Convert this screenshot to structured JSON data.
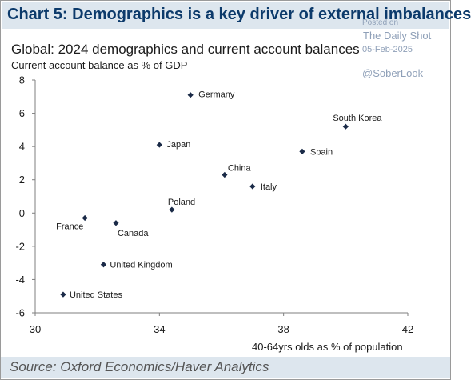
{
  "chart_data": {
    "type": "scatter",
    "title": "Chart 5: Demographics is a key driver of external imbalances",
    "subtitle": "Global: 2024 demographics and current account balances",
    "ylabel": "Current account balance as % of GDP",
    "xlabel": "40-64yrs olds as % of population",
    "source": "Source: Oxford Economics/Haver Analytics",
    "xlim": [
      30,
      42
    ],
    "ylim": [
      -6,
      8
    ],
    "xticks": [
      30,
      34,
      38,
      42
    ],
    "yticks": [
      8,
      6,
      4,
      2,
      0,
      -2,
      -4,
      -6
    ],
    "grid": false,
    "marker_color": "#1a2a47",
    "points": [
      {
        "label": "Germany",
        "x": 35.0,
        "y": 7.1
      },
      {
        "label": "South Korea",
        "x": 40.0,
        "y": 5.2
      },
      {
        "label": "Japan",
        "x": 34.0,
        "y": 4.1
      },
      {
        "label": "Spain",
        "x": 38.6,
        "y": 3.7
      },
      {
        "label": "China",
        "x": 36.1,
        "y": 2.3
      },
      {
        "label": "Italy",
        "x": 37.0,
        "y": 1.6
      },
      {
        "label": "Poland",
        "x": 34.4,
        "y": 0.2
      },
      {
        "label": "France",
        "x": 31.6,
        "y": -0.3
      },
      {
        "label": "Canada",
        "x": 32.6,
        "y": -0.6
      },
      {
        "label": "United Kingdom",
        "x": 32.2,
        "y": -3.1
      },
      {
        "label": "United States",
        "x": 30.9,
        "y": -4.9
      }
    ]
  },
  "watermark": {
    "posted": "Posted on",
    "site": "The Daily Shot",
    "date": "05-Feb-2025",
    "handle": "@SoberLook"
  },
  "colors": {
    "title": "#0c3a6b",
    "band": "#dde6ee",
    "watermark": "#8fa0b8"
  }
}
